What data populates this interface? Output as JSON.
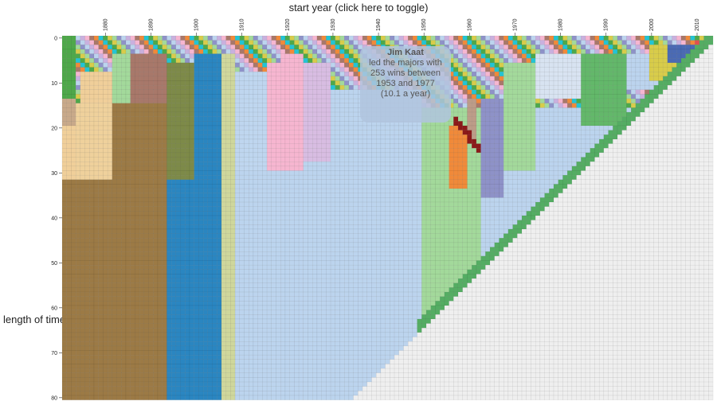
{
  "header": {
    "x_axis_title": "start year (click here to toggle)"
  },
  "side": {
    "y_axis_title": "length of time"
  },
  "tooltip": {
    "name": "Jim Kaat",
    "line1": "led the majors with",
    "line2": "253 wins between",
    "line3": "1953 and 1977",
    "line4": "(10.1 a year)"
  },
  "chart_data": {
    "type": "heatmap",
    "title": "",
    "xlabel": "start year (click here to toggle)",
    "ylabel": "length of time",
    "x_ticks": [
      1880,
      1890,
      1900,
      1910,
      1920,
      1930,
      1940,
      1950,
      1960,
      1970,
      1980,
      1990,
      2000,
      2010
    ],
    "y_ticks": [
      0,
      10,
      20,
      30,
      40,
      50,
      60,
      70,
      80
    ],
    "xlim": [
      1871,
      2014
    ],
    "ylim": [
      0,
      81
    ],
    "grid": true,
    "empty_color": "#efefef",
    "regions": [
      {
        "start": 1871,
        "end": 1874,
        "color": "#4ea84a",
        "ymin": 0,
        "ymax": 14
      },
      {
        "start": 1871,
        "end": 1874,
        "color": "#c8a98a",
        "ymin": 14,
        "ymax": 20
      },
      {
        "start": 1871,
        "end": 1877,
        "color": "#f0cf9a",
        "ymin": 20,
        "ymax": 32
      },
      {
        "start": 1871,
        "end": 1894,
        "color": "#9c7a45",
        "ymin": 32,
        "ymax": 81
      },
      {
        "start": 1874,
        "end": 1882,
        "color": "#efd19c",
        "ymin": 15,
        "ymax": 32
      },
      {
        "start": 1882,
        "end": 1894,
        "color": "#9c7a45",
        "ymin": 15,
        "ymax": 32
      },
      {
        "start": 1875,
        "end": 1882,
        "color": "#f0cf9a",
        "ymin": 8,
        "ymax": 15
      },
      {
        "start": 1882,
        "end": 1886,
        "color": "#a3d99b",
        "ymin": 4,
        "ymax": 15
      },
      {
        "start": 1886,
        "end": 1894,
        "color": "#a8786a",
        "ymin": 4,
        "ymax": 15
      },
      {
        "start": 1894,
        "end": 1900,
        "color": "#7d8a48",
        "ymin": 6,
        "ymax": 32
      },
      {
        "start": 1894,
        "end": 1906,
        "color": "#2a86c1",
        "ymin": 32,
        "ymax": 81
      },
      {
        "start": 1900,
        "end": 1906,
        "color": "#2a86c1",
        "ymin": 4,
        "ymax": 32
      },
      {
        "start": 1906,
        "end": 1909,
        "color": "#cfd79c",
        "ymin": 4,
        "ymax": 81
      },
      {
        "start": 1909,
        "end": 1916,
        "color": "#bfd6ef",
        "ymin": 8,
        "ymax": 48
      },
      {
        "start": 1916,
        "end": 1919,
        "color": "#f6b6d0",
        "ymin": 6,
        "ymax": 46
      },
      {
        "start": 1919,
        "end": 1924,
        "color": "#f6b6d0",
        "ymin": 4,
        "ymax": 30
      },
      {
        "start": 1924,
        "end": 1930,
        "color": "#d8bde2",
        "ymin": 6,
        "ymax": 28
      },
      {
        "start": 1909,
        "end": 1950,
        "color": "#bcd4ee",
        "ymin": 30,
        "ymax": 81
      },
      {
        "start": 1930,
        "end": 1950,
        "color": "#bcd4ee",
        "ymin": 12,
        "ymax": 30
      },
      {
        "start": 1950,
        "end": 1963,
        "color": "#a3d99b",
        "ymin": 16,
        "ymax": 62
      },
      {
        "start": 1956,
        "end": 1960,
        "color": "#f08a3a",
        "ymin": 20,
        "ymax": 34
      },
      {
        "start": 1960,
        "end": 1962,
        "color": "#bd9c88",
        "ymin": 14,
        "ymax": 24
      },
      {
        "start": 1963,
        "end": 1968,
        "color": "#8e92c8",
        "ymin": 14,
        "ymax": 36
      },
      {
        "start": 1968,
        "end": 1975,
        "color": "#a3d99b",
        "ymin": 6,
        "ymax": 30
      },
      {
        "start": 1975,
        "end": 1985,
        "color": "#d8e3f1",
        "ymin": 4,
        "ymax": 14
      },
      {
        "start": 1985,
        "end": 1995,
        "color": "#63b86a",
        "ymin": 4,
        "ymax": 20
      },
      {
        "start": 1995,
        "end": 2005,
        "color": "#bcd4ee",
        "ymin": 4,
        "ymax": 12
      },
      {
        "start": 2000,
        "end": 2006,
        "color": "#d8cc4a",
        "ymin": 2,
        "ymax": 10
      },
      {
        "start": 2004,
        "end": 2010,
        "color": "#4a6ab4",
        "ymin": 2,
        "ymax": 6
      },
      {
        "start": 2010,
        "end": 2014,
        "color": "#e05050",
        "ymin": 1,
        "ymax": 3
      }
    ],
    "triangle_edge_color": "#54ad63",
    "sample_path": {
      "color": "#8b1a1a",
      "start": 1957,
      "end": 1963,
      "ymin": 18,
      "ymax": 26
    },
    "selected_cell": {
      "start_year": 1953,
      "length": 24,
      "player": "Jim Kaat",
      "wins": 253,
      "per_year": 10.1
    }
  }
}
